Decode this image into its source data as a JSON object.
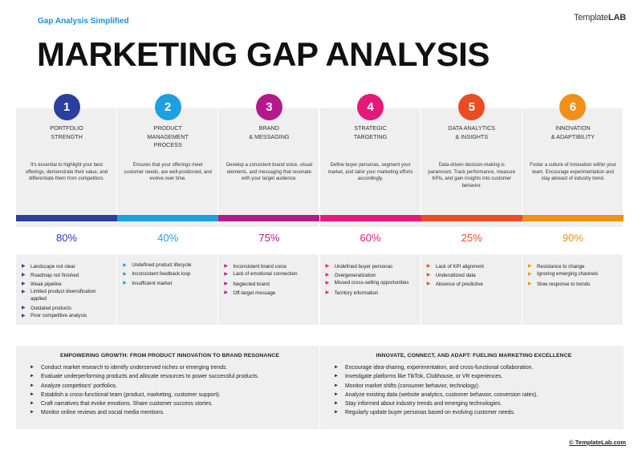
{
  "header": {
    "subtitle": "Gap Analysis Simplified",
    "logo_prefix": "Template",
    "logo_suffix": "LAB",
    "title": "MARKETING GAP ANALYSIS"
  },
  "columns": [
    {
      "number": "1",
      "title": "PORTFOLIO\nSTRENGTH",
      "description": "It's essential to highlight your best offerings, demonstrate their value, and differentiate them from competitors.",
      "percent": "80%",
      "color": "#2a3f9f",
      "gaps": [
        "Landscape not clear",
        "Roadmap not finished",
        "Weak pipeline",
        "Limited product diversification applied",
        "Outdated products",
        "Poor competitive analysis"
      ]
    },
    {
      "number": "2",
      "title": "PRODUCT\nMANAGEMENT\nPROCESS",
      "description": "Ensures that your offerings meet customer needs, are well-positioned, and evolve over time.",
      "percent": "40%",
      "color": "#1e9fe0",
      "gaps": [
        "Undefined product lifecycle",
        "Inconsistent feedback loop",
        "Insufficient market"
      ]
    },
    {
      "number": "3",
      "title": "BRAND\n& MESSAGING",
      "description": "Develop a consistent brand voice, visual elements, and messaging that resonate with your target audience.",
      "percent": "75%",
      "color": "#b4198c",
      "gaps": [
        "Inconsistent brand voice",
        "Lack of emotional connection",
        "Neglected brand",
        "Off-target message"
      ]
    },
    {
      "number": "4",
      "title": "STRATEGIC\nTARGETING",
      "description": "Define buyer personas, segment your market, and tailor your marketing efforts accordingly.",
      "percent": "60%",
      "color": "#e4197a",
      "gaps": [
        "Undefined buyer personas",
        "Overgeneralization",
        "Missed cross-selling opportunities",
        "Territory information"
      ]
    },
    {
      "number": "5",
      "title": "DATA ANALYTICS\n& INSIGHTS",
      "description": "Data-driven decision-making is paramount. Track performance, measure KPIs, and gain insights into customer behavior.",
      "percent": "25%",
      "color": "#ea4d22",
      "gaps": [
        "Lack of KPI alignment",
        "Underutilized data",
        "Absence of predictive"
      ]
    },
    {
      "number": "6",
      "title": "INNOVATION\n& ADAPTIBILITY",
      "description": "Foster a culture of innovation within your team. Encourage experimentation and stay abreast of industry trend.",
      "percent": "90%",
      "color": "#f0901a",
      "gaps": [
        "Resistance to change",
        "Ignoring emerging channels",
        "Slow response to trends"
      ]
    }
  ],
  "boxes": [
    {
      "title": "EMPOWERING GROWTH: FROM PRODUCT INNOVATION TO BRAND RESONANCE",
      "items": [
        "Conduct market research to identify underserved niches or emerging trends.",
        "Evaluate underperforming products and allocate resources to power successful products.",
        "Analyze competitors' portfolios.",
        "Establish a cross-functional team (product, marketing, customer support).",
        "Craft narratives that evoke emotions. Share customer success stories.",
        "Monitor online reviews and social media mentions."
      ]
    },
    {
      "title": "INNOVATE, CONNECT, AND ADAPT: FUELING MARKETING EXCELLENCE",
      "items": [
        "Encourage idea-sharing, experimentation, and cross-functional collaboration.",
        "Investigate platforms like TikTok, Clubhouse, or VR experiences.",
        "Monitor market shifts (consumer behavior, technology).",
        "Analyze existing data (website analytics, customer behavior, conversion rates).",
        "Stay informed about industry trends and emerging technologies.",
        "Regularly update buyer personas based on evolving customer needs."
      ]
    }
  ],
  "footer": {
    "copyright": "© TemplateLab.com"
  }
}
